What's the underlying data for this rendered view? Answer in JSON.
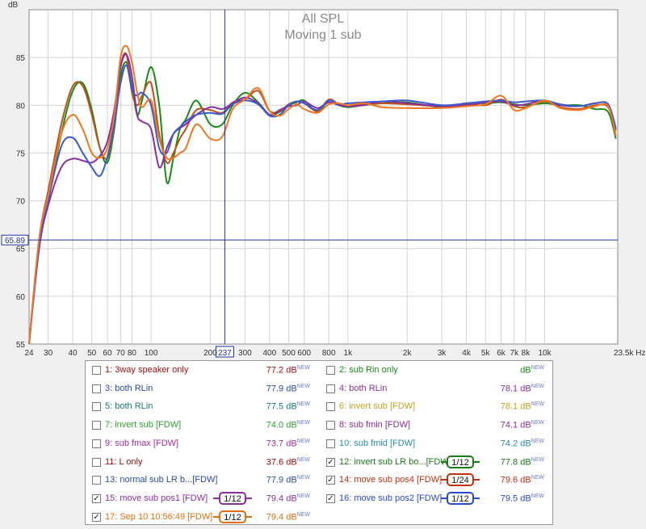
{
  "chart_data": {
    "type": "line",
    "title": "All SPL",
    "subtitle": "Moving 1 sub",
    "ylabel": "dB",
    "xlabel": "",
    "x_scale": "log",
    "xlim": [
      24,
      23500
    ],
    "ylim": [
      55,
      90
    ],
    "x_ticks": [
      {
        "v": 24,
        "label": "24"
      },
      {
        "v": 30,
        "label": "30"
      },
      {
        "v": 40,
        "label": "40"
      },
      {
        "v": 50,
        "label": "50"
      },
      {
        "v": 60,
        "label": "60"
      },
      {
        "v": 70,
        "label": "70"
      },
      {
        "v": 80,
        "label": "80"
      },
      {
        "v": 100,
        "label": "100"
      },
      {
        "v": 200,
        "label": "200"
      },
      {
        "v": 300,
        "label": "300"
      },
      {
        "v": 400,
        "label": "400"
      },
      {
        "v": 500,
        "label": "500"
      },
      {
        "v": 600,
        "label": "600"
      },
      {
        "v": 800,
        "label": "800"
      },
      {
        "v": 1000,
        "label": "1k"
      },
      {
        "v": 2000,
        "label": "2k"
      },
      {
        "v": 3000,
        "label": "3k"
      },
      {
        "v": 4000,
        "label": "4k"
      },
      {
        "v": 5000,
        "label": "5k"
      },
      {
        "v": 6000,
        "label": "6k"
      },
      {
        "v": 7000,
        "label": "7k"
      },
      {
        "v": 8000,
        "label": "8k"
      },
      {
        "v": 10000,
        "label": "10k"
      },
      {
        "v": 23500,
        "label": "23.5k Hz"
      }
    ],
    "y_ticks": [
      55,
      60,
      65,
      70,
      75,
      80,
      85
    ],
    "cursor": {
      "x": 237,
      "x_label": "237",
      "y": 65.89,
      "y_label": "65.89"
    },
    "grid": true,
    "series": [
      {
        "name": "12: invert sub LR bo...[FDW]",
        "color": "#1a8a1a",
        "x": [
          24,
          27,
          30,
          35,
          40,
          45,
          50,
          55,
          60,
          65,
          70,
          75,
          80,
          85,
          90,
          100,
          110,
          120,
          130,
          140,
          150,
          170,
          200,
          230,
          260,
          300,
          350,
          400,
          450,
          500,
          550,
          600,
          700,
          800,
          900,
          1000,
          1200,
          1500,
          2000,
          3000,
          4000,
          5000,
          6000,
          7000,
          8000,
          10000,
          12000,
          15000,
          18000,
          21000,
          23000
        ],
        "y": [
          55,
          65.5,
          70,
          77,
          81.5,
          82.3,
          79.5,
          75.5,
          74,
          77.5,
          83,
          84.5,
          82,
          79,
          80.5,
          84,
          80,
          72,
          74.5,
          77.5,
          78.5,
          80.5,
          78,
          78,
          80,
          81.3,
          80.3,
          79,
          79.3,
          80,
          80.3,
          80.5,
          79.3,
          80.5,
          80,
          79.8,
          80,
          80.2,
          80.3,
          79.8,
          80.2,
          80.2,
          80.3,
          80.1,
          80,
          80.2,
          80,
          80,
          79.6,
          79.3,
          76.5
        ]
      },
      {
        "name": "14: move sub pos4 [FDW]",
        "color": "#c0501a",
        "x": [
          24,
          27,
          30,
          35,
          40,
          45,
          50,
          55,
          60,
          65,
          70,
          75,
          80,
          85,
          90,
          100,
          110,
          120,
          130,
          140,
          150,
          170,
          200,
          230,
          260,
          300,
          350,
          400,
          450,
          500,
          550,
          600,
          700,
          800,
          900,
          1000,
          1200,
          1500,
          2000,
          3000,
          4000,
          5000,
          6000,
          7000,
          8000,
          10000,
          12000,
          15000,
          18000,
          21000,
          23000
        ],
        "y": [
          55,
          66,
          71,
          78,
          82,
          82,
          79,
          75.5,
          74.5,
          78,
          84,
          85.3,
          81.3,
          80,
          81,
          82.3,
          77,
          74,
          75,
          76.5,
          77.5,
          79.5,
          79.5,
          79.2,
          80.3,
          80.6,
          81.5,
          79.4,
          79.4,
          80.1,
          80.4,
          80.2,
          79.4,
          80.6,
          80.1,
          79.9,
          80.1,
          80.2,
          80.1,
          79.9,
          80.1,
          80,
          80.6,
          79.9,
          79.8,
          80.4,
          79.8,
          79.6,
          80,
          79.8,
          77.3
        ]
      },
      {
        "name": "15: move sub pos1 [FDW]",
        "color": "#8a2ea0",
        "x": [
          24,
          27,
          30,
          35,
          40,
          45,
          50,
          55,
          60,
          65,
          70,
          75,
          80,
          85,
          90,
          100,
          110,
          120,
          130,
          140,
          150,
          170,
          200,
          230,
          260,
          300,
          350,
          400,
          450,
          500,
          550,
          600,
          700,
          800,
          900,
          1000,
          1200,
          1500,
          2000,
          3000,
          4000,
          5000,
          6000,
          7000,
          8000,
          10000,
          12000,
          15000,
          18000,
          21000,
          23000
        ],
        "y": [
          54,
          65,
          69.5,
          73.5,
          74.4,
          74.2,
          74,
          74.7,
          76.2,
          79.5,
          84,
          85.3,
          83,
          79,
          78.3,
          77.5,
          73.5,
          75.5,
          77,
          77.6,
          78,
          79,
          79.8,
          79.6,
          80.2,
          80.8,
          80.2,
          79,
          79.5,
          79.9,
          80,
          80.4,
          79.7,
          80.3,
          80,
          79.9,
          80,
          80.4,
          80.2,
          79.9,
          80,
          80.3,
          80.4,
          80,
          80.1,
          80.5,
          80,
          79.9,
          80.2,
          80.1,
          77.5
        ]
      },
      {
        "name": "16: move sub pos2 [FDW]",
        "color": "#3a5ad0",
        "x": [
          24,
          27,
          30,
          35,
          40,
          45,
          50,
          55,
          60,
          65,
          70,
          75,
          80,
          85,
          90,
          100,
          110,
          120,
          130,
          140,
          150,
          170,
          200,
          230,
          260,
          300,
          350,
          400,
          450,
          500,
          550,
          600,
          700,
          800,
          900,
          1000,
          1200,
          1500,
          2000,
          3000,
          4000,
          5000,
          6000,
          7000,
          8000,
          10000,
          12000,
          15000,
          18000,
          21000,
          23000
        ],
        "y": [
          54.5,
          65.5,
          70,
          75.7,
          76.6,
          75,
          73.5,
          72.6,
          74.6,
          78,
          82.3,
          84.2,
          81.6,
          81,
          81.3,
          80,
          75.5,
          75,
          77,
          77.7,
          78.3,
          79,
          79.2,
          79.1,
          80.1,
          80.5,
          80.1,
          78.9,
          79,
          80,
          80.4,
          80.2,
          79.5,
          80.5,
          80.1,
          80.2,
          80.3,
          80.4,
          80.5,
          80,
          80.2,
          80.4,
          80.5,
          80.3,
          80.4,
          80.5,
          80.1,
          79.9,
          80.2,
          80.1,
          77.6
        ]
      },
      {
        "name": "17: Sep 10 10:56:49 [FDW]",
        "color": "#f07820",
        "x": [
          24,
          27,
          30,
          35,
          40,
          45,
          50,
          55,
          60,
          65,
          70,
          75,
          80,
          85,
          90,
          100,
          110,
          120,
          130,
          140,
          150,
          170,
          200,
          230,
          260,
          300,
          350,
          400,
          450,
          500,
          550,
          600,
          700,
          800,
          900,
          1000,
          1200,
          1500,
          2000,
          3000,
          4000,
          5000,
          6000,
          7000,
          8000,
          10000,
          12000,
          15000,
          18000,
          21000,
          23000
        ],
        "y": [
          55,
          66,
          70.5,
          77,
          79,
          77.5,
          75,
          74.5,
          75.5,
          79,
          85,
          86.2,
          84.5,
          81.3,
          79.8,
          80.5,
          76.5,
          74.5,
          74.5,
          75,
          75.5,
          78,
          76.5,
          76.7,
          79.6,
          80.6,
          81.8,
          79.4,
          78.9,
          79.6,
          80.1,
          79.6,
          79.2,
          80.1,
          80.2,
          80,
          80.2,
          79.8,
          79.7,
          79.7,
          79.9,
          80.1,
          81,
          79.5,
          79.7,
          80.5,
          79.7,
          79.5,
          79.9,
          79.9,
          76.8
        ]
      }
    ]
  },
  "legend": {
    "left": [
      {
        "label": "1: 3way speaker only",
        "value": "77.2 dB",
        "checked": false,
        "color": "#a01010",
        "smoothing": ""
      },
      {
        "label": "3: both RLin",
        "value": "77.9 dB",
        "checked": false,
        "color": "#2a4aa8",
        "smoothing": ""
      },
      {
        "label": "5: both RLin",
        "value": "77.5 dB",
        "checked": false,
        "color": "#1a7a7a",
        "smoothing": ""
      },
      {
        "label": "7: invert sub [FDW]",
        "value": "74.0 dB",
        "checked": false,
        "color": "#30a030",
        "smoothing": ""
      },
      {
        "label": "9: sub fmax [FDW]",
        "value": "73.7 dB",
        "checked": false,
        "color": "#a030a0",
        "smoothing": ""
      },
      {
        "label": "11: L only",
        "value": "37.6 dB",
        "checked": false,
        "color": "#a01010",
        "smoothing": ""
      },
      {
        "label": "13: normal sub LR b...[FDW]",
        "value": "77.9 dB",
        "checked": false,
        "color": "#2a4aa8",
        "smoothing": ""
      },
      {
        "label": "15: move sub pos1 [FDW]",
        "value": "79.4 dB",
        "checked": true,
        "color": "#8a2ea0",
        "smoothing": "1/12"
      },
      {
        "label": "17: Sep 10 10:56:49 [FDW]",
        "value": "79.4 dB",
        "checked": true,
        "color": "#e07010",
        "smoothing": "1/12"
      }
    ],
    "right": [
      {
        "label": "2: sub Rin only",
        "value": "dB",
        "checked": false,
        "color": "#1a8a1a",
        "smoothing": ""
      },
      {
        "label": "4: both RLin",
        "value": "78.1 dB",
        "checked": false,
        "color": "#8a2ea0",
        "smoothing": ""
      },
      {
        "label": "6: invert sub [FDW]",
        "value": "78.1 dB",
        "checked": false,
        "color": "#c8a020",
        "smoothing": ""
      },
      {
        "label": "8: sub fmin [FDW]",
        "value": "74.1 dB",
        "checked": false,
        "color": "#8a2ea0",
        "smoothing": ""
      },
      {
        "label": "10: sub fmid [FDW]",
        "value": "74.2 dB",
        "checked": false,
        "color": "#2a8ab0",
        "smoothing": ""
      },
      {
        "label": "12: invert sub LR bo...[FDW]",
        "value": "77.8 dB",
        "checked": true,
        "color": "#1a7a1a",
        "smoothing": "1/12"
      },
      {
        "label": "14: move sub pos4 [FDW]",
        "value": "79.6 dB",
        "checked": true,
        "color": "#c03010",
        "smoothing": "1/24"
      },
      {
        "label": "16: move sub pos2 [FDW]",
        "value": "79.5 dB",
        "checked": true,
        "color": "#2a4ad0",
        "smoothing": "1/12"
      }
    ],
    "new_badge": "NEW",
    "check_glyph": "✓"
  }
}
